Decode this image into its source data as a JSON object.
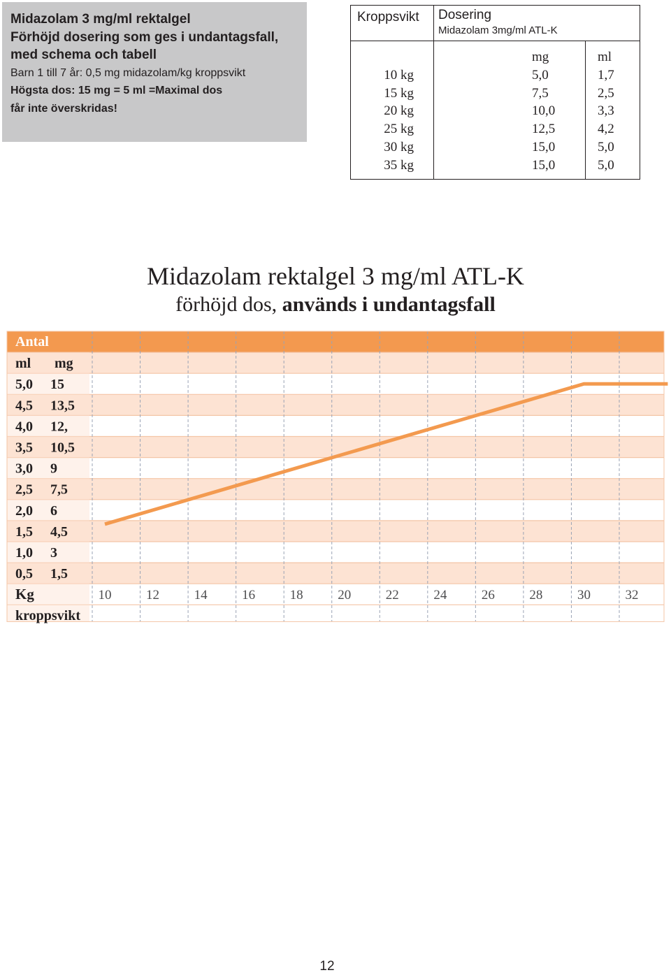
{
  "infobox": {
    "line1": "Midazolam 3 mg/ml rektalgel",
    "line2": "Förhöjd dosering som ges i undantagsfall,",
    "line3": "med schema och tabell",
    "line4": "Barn 1 till 7 år: 0,5 mg midazolam/kg kroppsvikt",
    "line5": "Högsta dos: 15 mg = 5 ml =Maximal dos",
    "line6": "får inte överskridas!",
    "background": "#c8c8c9"
  },
  "dose_table": {
    "header_weight": "Kroppsvikt",
    "header_dosing": "Dosering",
    "header_product": "Midazolam 3mg/ml ATL-K",
    "unit_mg": "mg",
    "unit_ml": "ml",
    "rows": [
      {
        "weight": "10 kg",
        "mg": "5,0",
        "ml": "1,7"
      },
      {
        "weight": "15 kg",
        "mg": "7,5",
        "ml": "2,5"
      },
      {
        "weight": "20 kg",
        "mg": "10,0",
        "ml": "3,3"
      },
      {
        "weight": "25 kg",
        "mg": "12,5",
        "ml": "4,2"
      },
      {
        "weight": "30 kg",
        "mg": "15,0",
        "ml": "5,0"
      },
      {
        "weight": "35 kg",
        "mg": "15,0",
        "ml": "5,0"
      }
    ]
  },
  "title": "Midazolam rektalgel 3 mg/ml ATL-K",
  "subtitle_normal": "förhöjd dos,",
  "subtitle_bold": "används i undantagsfall",
  "page_number": "12",
  "colors": {
    "header_band": "#f3994f",
    "band_light": "#fde3d3",
    "band_white": "#ffffff",
    "line": "#f39a4f",
    "gridline": "#9aa3b5",
    "text": "#231f20"
  },
  "chart_data": {
    "type": "line",
    "header_label": "Antal",
    "col_ml": "ml",
    "col_mg": "mg",
    "y_ticks": [
      {
        "ml": "5,0",
        "mg": "15"
      },
      {
        "ml": "4,5",
        "mg": "13,5"
      },
      {
        "ml": "4,0",
        "mg": "12,"
      },
      {
        "ml": "3,5",
        "mg": "10,5"
      },
      {
        "ml": "3,0",
        "mg": "9"
      },
      {
        "ml": "2,5",
        "mg": "7,5"
      },
      {
        "ml": "2,0",
        "mg": "6"
      },
      {
        "ml": "1,5",
        "mg": "4,5"
      },
      {
        "ml": "1,0",
        "mg": "3"
      },
      {
        "ml": "0,5",
        "mg": "1,5"
      }
    ],
    "x_label_line1": "Kg",
    "x_label_line2": "kroppsvikt",
    "x_ticks": [
      "10",
      "12",
      "14",
      "16",
      "18",
      "20",
      "22",
      "24",
      "26",
      "28",
      "30",
      "32"
    ],
    "x_range": [
      10,
      34
    ],
    "y_range_mg": [
      1.5,
      15
    ],
    "series": [
      {
        "x": [
          10,
          30,
          32,
          33.5
        ],
        "y_mg": [
          5.0,
          15.0,
          15.0,
          15.0
        ]
      }
    ]
  }
}
